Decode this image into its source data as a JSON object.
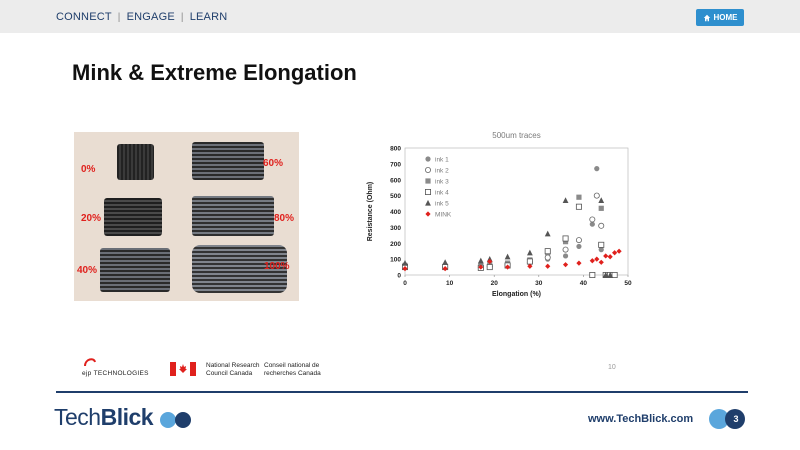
{
  "nav": {
    "items": [
      "CONNECT",
      "ENGAGE",
      "LEARN"
    ],
    "home_label": "HOME"
  },
  "slide": {
    "title": "Mink & Extreme Elongation",
    "footer_page": "10",
    "slide_number": "3"
  },
  "photo": {
    "labels": [
      "0%",
      "20%",
      "40%",
      "60%",
      "80%",
      "100%"
    ]
  },
  "logos": {
    "ejp": "ejp TECHNOLOGIES",
    "nrc_en_1": "National Research",
    "nrc_en_2": "Council Canada",
    "nrc_fr_1": "Conseil national de",
    "nrc_fr_2": "recherches Canada"
  },
  "brand": {
    "name_light": "Tech",
    "name_bold": "Blick",
    "url": "www.TechBlick.com"
  },
  "colors": {
    "navy": "#1f3e6b",
    "accent_blue": "#2e8fce",
    "mink_red": "#e0211d"
  },
  "chart_data": {
    "type": "scatter",
    "title": "500um traces",
    "xlabel": "Elongation (%)",
    "ylabel": "Resistance (Ohm)",
    "xlim": [
      0,
      50
    ],
    "ylim": [
      0,
      800
    ],
    "xticks": [
      0,
      10,
      20,
      30,
      40,
      50
    ],
    "yticks": [
      0,
      100,
      200,
      300,
      400,
      500,
      600,
      700,
      800
    ],
    "legend_position": "top-left",
    "series": [
      {
        "name": "ink 1",
        "marker": "circle-filled",
        "color": "#8a8a8a",
        "points": [
          [
            0,
            65
          ],
          [
            9,
            60
          ],
          [
            17,
            55
          ],
          [
            19,
            60
          ],
          [
            23,
            70
          ],
          [
            28,
            90
          ],
          [
            32,
            100
          ],
          [
            36,
            120
          ],
          [
            39,
            180
          ],
          [
            42,
            320
          ],
          [
            43,
            670
          ],
          [
            44,
            160
          ]
        ]
      },
      {
        "name": "ink 2",
        "marker": "circle-open",
        "color": "#666666",
        "points": [
          [
            0,
            55
          ],
          [
            9,
            50
          ],
          [
            17,
            50
          ],
          [
            19,
            55
          ],
          [
            23,
            65
          ],
          [
            28,
            80
          ],
          [
            32,
            110
          ],
          [
            36,
            160
          ],
          [
            39,
            220
          ],
          [
            42,
            350
          ],
          [
            43,
            500
          ],
          [
            44,
            310
          ]
        ]
      },
      {
        "name": "ink 3",
        "marker": "square-filled",
        "color": "#8a8a8a",
        "points": [
          [
            0,
            60
          ],
          [
            9,
            55
          ],
          [
            17,
            60
          ],
          [
            19,
            65
          ],
          [
            23,
            75
          ],
          [
            28,
            95
          ],
          [
            32,
            140
          ],
          [
            36,
            210
          ],
          [
            39,
            490
          ],
          [
            44,
            420
          ]
        ]
      },
      {
        "name": "ink 4",
        "marker": "square-open",
        "color": "#555555",
        "points": [
          [
            0,
            50
          ],
          [
            9,
            50
          ],
          [
            17,
            45
          ],
          [
            19,
            50
          ],
          [
            23,
            60
          ],
          [
            28,
            85
          ],
          [
            32,
            150
          ],
          [
            36,
            230
          ],
          [
            39,
            430
          ],
          [
            42,
            0
          ],
          [
            44,
            190
          ],
          [
            45,
            0
          ],
          [
            46,
            0
          ],
          [
            47,
            0
          ]
        ]
      },
      {
        "name": "ink 5",
        "marker": "triangle-filled",
        "color": "#555555",
        "points": [
          [
            0,
            75
          ],
          [
            9,
            80
          ],
          [
            17,
            90
          ],
          [
            19,
            100
          ],
          [
            23,
            115
          ],
          [
            28,
            140
          ],
          [
            32,
            260
          ],
          [
            36,
            470
          ],
          [
            44,
            470
          ],
          [
            45,
            0
          ],
          [
            46,
            0
          ]
        ]
      },
      {
        "name": "MINK",
        "marker": "diamond-filled",
        "color": "#e0211d",
        "points": [
          [
            0,
            40
          ],
          [
            9,
            40
          ],
          [
            17,
            50
          ],
          [
            19,
            85
          ],
          [
            23,
            50
          ],
          [
            28,
            55
          ],
          [
            32,
            55
          ],
          [
            36,
            65
          ],
          [
            39,
            75
          ],
          [
            42,
            90
          ],
          [
            43,
            100
          ],
          [
            44,
            80
          ],
          [
            45,
            120
          ],
          [
            46,
            115
          ],
          [
            47,
            140
          ],
          [
            48,
            150
          ]
        ]
      }
    ]
  }
}
